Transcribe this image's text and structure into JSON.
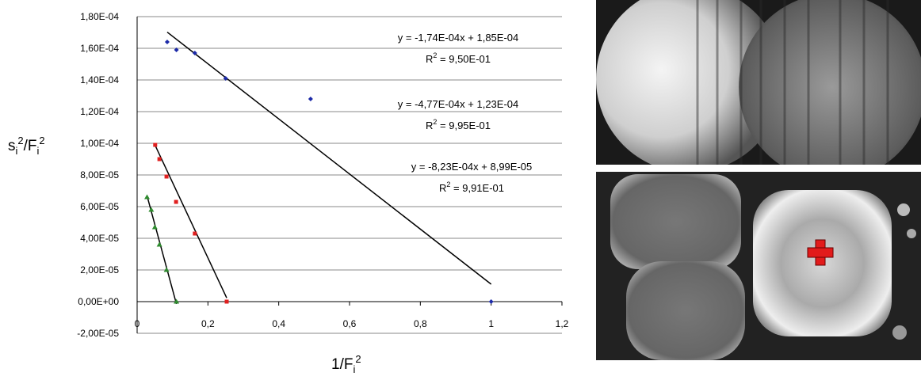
{
  "chart_data": {
    "type": "scatter",
    "y_label": [
      "s",
      "i",
      "2",
      "/F",
      "i",
      "2"
    ],
    "x_label": [
      "1/F",
      "i",
      "2"
    ],
    "xlim": [
      0,
      1.2
    ],
    "xticks": [
      0,
      {
        "value": 0.2,
        "label": "0,2"
      },
      {
        "value": 0.4,
        "label": "0,4"
      },
      {
        "value": 0.6,
        "label": "0,6"
      },
      {
        "value": 0.8,
        "label": "0,8"
      },
      {
        "value": 1,
        "label": "1"
      },
      {
        "value": 1.2,
        "label": "1,2"
      }
    ],
    "ylim": [
      -2e-05,
      0.00018
    ],
    "yticks": [
      {
        "value": -2e-05,
        "label": "-2,00E-05"
      },
      {
        "value": 0,
        "label": "0,00E+00"
      },
      {
        "value": 2e-05,
        "label": "2,00E-05"
      },
      {
        "value": 4e-05,
        "label": "4,00E-05"
      },
      {
        "value": 6e-05,
        "label": "6,00E-05"
      },
      {
        "value": 8e-05,
        "label": "8,00E-05"
      },
      {
        "value": 0.0001,
        "label": "1,00E-04"
      },
      {
        "value": 0.00012,
        "label": "1,20E-04"
      },
      {
        "value": 0.00014,
        "label": "1,40E-04"
      },
      {
        "value": 0.00016,
        "label": "1,60E-04"
      },
      {
        "value": 0.00018,
        "label": "1,80E-04"
      }
    ],
    "grid": true,
    "series": [
      {
        "color": "#1c2aa8",
        "marker": "diamond",
        "x": [
          0.085,
          0.111,
          0.163,
          0.25,
          0.49,
          1.0
        ],
        "values": [
          0.000164,
          0.000159,
          0.000157,
          0.000141,
          0.000128,
          0
        ],
        "trend": {
          "slope": -0.000174,
          "intercept": 0.000185,
          "equation": "y = -1,74E-04x + 1,85E-04",
          "r2": [
            "R",
            "2",
            " = 9,50E-01"
          ]
        }
      },
      {
        "color": "#e02020",
        "marker": "square",
        "x": [
          0.051,
          0.063,
          0.083,
          0.11,
          0.163,
          0.253
        ],
        "values": [
          9.9e-05,
          9e-05,
          7.9e-05,
          6.3e-05,
          4.3e-05,
          0
        ],
        "trend": {
          "slope": -0.000477,
          "intercept": 0.000123,
          "equation": "y = -4,77E-04x + 1,23E-04",
          "r2": [
            "R",
            "2",
            " = 9,95E-01"
          ]
        }
      },
      {
        "color": "#2e8b2e",
        "marker": "triangle",
        "x": [
          0.028,
          0.04,
          0.05,
          0.063,
          0.083,
          0.111
        ],
        "values": [
          6.6e-05,
          5.8e-05,
          4.7e-05,
          3.6e-05,
          2e-05,
          0
        ],
        "trend": {
          "slope": -0.000823,
          "intercept": 8.99e-05,
          "equation": "y = -8,23E-04x + 8,99E-05",
          "r2": [
            "R",
            "2",
            " = 9,91E-01"
          ]
        }
      }
    ]
  }
}
